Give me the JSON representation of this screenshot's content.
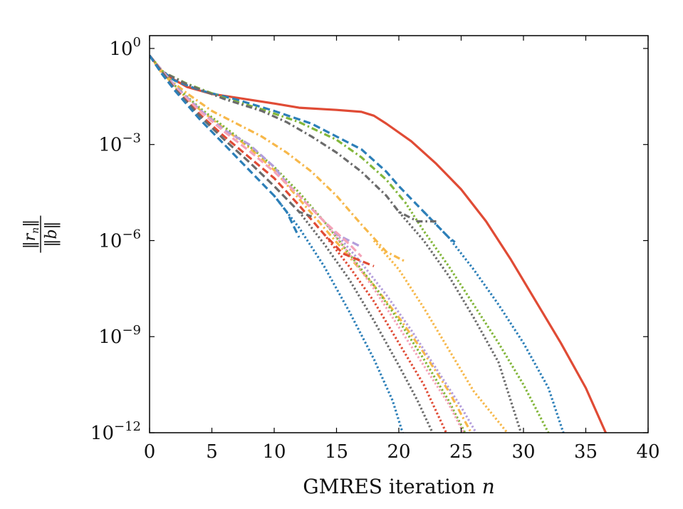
{
  "chart_data": {
    "type": "line",
    "title": "",
    "xlabel": "GMRES iteration",
    "xlabel_var": "n",
    "ylabel_num": "‖r",
    "ylabel_sub": "n",
    "ylabel_num_end": "‖",
    "ylabel_den": "‖b‖",
    "xlim": [
      0,
      40
    ],
    "ylim_log10": [
      -12,
      0.4
    ],
    "y_scale": "log",
    "grid": false,
    "legend": "none",
    "x_ticks": [
      0,
      5,
      10,
      15,
      20,
      25,
      30,
      35,
      40
    ],
    "x_tick_labels": [
      "0",
      "5",
      "10",
      "15",
      "20",
      "25",
      "30",
      "35",
      "40"
    ],
    "y_ticks_log10": [
      0,
      -3,
      -6,
      -9,
      -12
    ],
    "y_tick_base": "10",
    "y_tick_exps": [
      "0",
      "−3",
      "−6",
      "−9",
      "−12"
    ],
    "series": [
      {
        "color": "#e04b35",
        "style": "solid",
        "points": [
          [
            0,
            -0.22
          ],
          [
            1,
            -0.72
          ],
          [
            2,
            -0.98
          ],
          [
            3,
            -1.2
          ],
          [
            5,
            -1.42
          ],
          [
            8,
            -1.6
          ],
          [
            10,
            -1.72
          ],
          [
            12,
            -1.85
          ],
          [
            15,
            -1.92
          ],
          [
            17,
            -1.98
          ],
          [
            18,
            -2.1
          ],
          [
            19,
            -2.35
          ],
          [
            21,
            -2.9
          ],
          [
            23,
            -3.6
          ],
          [
            25,
            -4.4
          ],
          [
            27,
            -5.4
          ],
          [
            29,
            -6.6
          ],
          [
            31,
            -7.9
          ],
          [
            33,
            -9.2
          ],
          [
            35,
            -10.6
          ],
          [
            36.6,
            -12
          ]
        ]
      },
      {
        "color": "#2c7fb8",
        "style": "dashed",
        "points": [
          [
            0,
            -0.22
          ],
          [
            1,
            -0.7
          ],
          [
            2,
            -1.0
          ],
          [
            4,
            -1.3
          ],
          [
            7,
            -1.6
          ],
          [
            10,
            -1.95
          ],
          [
            13,
            -2.35
          ],
          [
            15,
            -2.75
          ],
          [
            17,
            -3.15
          ],
          [
            19,
            -3.85
          ],
          [
            20,
            -4.3
          ],
          [
            21,
            -4.7
          ],
          [
            22,
            -5.1
          ],
          [
            23,
            -5.5
          ],
          [
            24,
            -5.9
          ],
          [
            24.5,
            -6.05
          ]
        ]
      },
      {
        "color": "#2c7fb8",
        "style": "dotted",
        "points": [
          [
            22,
            -5.1
          ],
          [
            24,
            -5.9
          ],
          [
            26,
            -6.9
          ],
          [
            28,
            -8.0
          ],
          [
            30,
            -9.2
          ],
          [
            32,
            -10.6
          ],
          [
            33.2,
            -12
          ]
        ]
      },
      {
        "color": "#82b63a",
        "style": "dashdot",
        "points": [
          [
            0,
            -0.22
          ],
          [
            1,
            -0.72
          ],
          [
            3,
            -1.1
          ],
          [
            6,
            -1.55
          ],
          [
            9,
            -1.9
          ],
          [
            12,
            -2.3
          ],
          [
            15,
            -2.85
          ],
          [
            17,
            -3.4
          ],
          [
            19,
            -4.1
          ],
          [
            20.5,
            -4.8
          ]
        ]
      },
      {
        "color": "#82b63a",
        "style": "dotted",
        "points": [
          [
            20.5,
            -4.8
          ],
          [
            22,
            -5.7
          ],
          [
            24,
            -6.8
          ],
          [
            26,
            -8.0
          ],
          [
            28,
            -9.2
          ],
          [
            30,
            -10.5
          ],
          [
            32,
            -12
          ]
        ]
      },
      {
        "color": "#6b6b6b",
        "style": "dashdot",
        "points": [
          [
            0,
            -0.22
          ],
          [
            1,
            -0.72
          ],
          [
            3,
            -1.12
          ],
          [
            6,
            -1.58
          ],
          [
            9,
            -1.95
          ],
          [
            11,
            -2.3
          ],
          [
            13,
            -2.75
          ],
          [
            15,
            -3.25
          ],
          [
            17,
            -3.85
          ],
          [
            19,
            -4.6
          ],
          [
            20,
            -5.1
          ],
          [
            21.5,
            -5.4
          ],
          [
            23,
            -5.4
          ]
        ]
      },
      {
        "color": "#6b6b6b",
        "style": "dotted",
        "points": [
          [
            20,
            -5.1
          ],
          [
            22,
            -6.0
          ],
          [
            24,
            -7.1
          ],
          [
            26,
            -8.4
          ],
          [
            28,
            -9.8
          ],
          [
            29.8,
            -12
          ]
        ]
      },
      {
        "color": "#f7b84a",
        "style": "dashdot",
        "points": [
          [
            0,
            -0.22
          ],
          [
            1,
            -0.78
          ],
          [
            3,
            -1.4
          ],
          [
            5,
            -1.95
          ],
          [
            7,
            -2.35
          ],
          [
            9,
            -2.75
          ],
          [
            11,
            -3.25
          ],
          [
            13,
            -3.85
          ],
          [
            15,
            -4.6
          ],
          [
            17,
            -5.5
          ],
          [
            19,
            -6.35
          ],
          [
            20.5,
            -6.65
          ]
        ]
      },
      {
        "color": "#f7b84a",
        "style": "dotted",
        "points": [
          [
            18,
            -6.0
          ],
          [
            20,
            -6.9
          ],
          [
            22,
            -8.1
          ],
          [
            24,
            -9.4
          ],
          [
            26,
            -10.7
          ],
          [
            28.7,
            -12
          ]
        ]
      },
      {
        "color": "#f7b84a",
        "style": "dashdot",
        "points": [
          [
            0,
            -0.22
          ],
          [
            2,
            -1.2
          ],
          [
            4,
            -1.9
          ],
          [
            6,
            -2.5
          ],
          [
            8,
            -3.1
          ],
          [
            10,
            -3.8
          ],
          [
            12,
            -4.7
          ],
          [
            14,
            -5.6
          ],
          [
            16,
            -6.5
          ],
          [
            18,
            -7.4
          ],
          [
            20,
            -8.4
          ],
          [
            22,
            -9.5
          ],
          [
            24,
            -10.7
          ],
          [
            25.8,
            -12
          ]
        ]
      },
      {
        "color": "#82b63a",
        "style": "dotted",
        "points": [
          [
            0,
            -0.22
          ],
          [
            2,
            -1.15
          ],
          [
            4,
            -1.85
          ],
          [
            6,
            -2.45
          ],
          [
            8,
            -3.05
          ],
          [
            10,
            -3.7
          ],
          [
            12,
            -4.5
          ],
          [
            14,
            -5.4
          ],
          [
            16,
            -6.4
          ],
          [
            18,
            -7.4
          ],
          [
            20,
            -8.5
          ],
          [
            22,
            -9.7
          ],
          [
            24,
            -11.0
          ],
          [
            25.3,
            -12
          ]
        ]
      },
      {
        "color": "#b39ddb",
        "style": "dashed",
        "points": [
          [
            0,
            -0.22
          ],
          [
            2,
            -1.15
          ],
          [
            4,
            -1.9
          ],
          [
            6,
            -2.55
          ],
          [
            8,
            -3.0
          ],
          [
            10,
            -3.7
          ],
          [
            11,
            -4.2
          ],
          [
            13,
            -5.0
          ],
          [
            15,
            -5.8
          ],
          [
            17,
            -6.2
          ]
        ]
      },
      {
        "color": "#b39ddb",
        "style": "dotted",
        "points": [
          [
            15,
            -5.8
          ],
          [
            17,
            -6.7
          ],
          [
            19,
            -7.7
          ],
          [
            21,
            -8.8
          ],
          [
            23,
            -10.0
          ],
          [
            25,
            -11.2
          ],
          [
            26.2,
            -12
          ]
        ]
      },
      {
        "color": "#f4a3b8",
        "style": "dashed",
        "points": [
          [
            0,
            -0.22
          ],
          [
            2,
            -1.2
          ],
          [
            4,
            -1.95
          ],
          [
            6,
            -2.6
          ],
          [
            8,
            -3.2
          ],
          [
            10,
            -3.85
          ],
          [
            12,
            -4.6
          ],
          [
            14,
            -5.4
          ],
          [
            16,
            -6.1
          ],
          [
            17,
            -6.5
          ]
        ]
      },
      {
        "color": "#f4a3b8",
        "style": "dotted",
        "points": [
          [
            14,
            -5.4
          ],
          [
            16,
            -6.4
          ],
          [
            18,
            -7.5
          ],
          [
            20,
            -8.7
          ],
          [
            22,
            -9.9
          ],
          [
            24,
            -11.1
          ],
          [
            25.2,
            -12
          ]
        ]
      },
      {
        "color": "#e04b35",
        "style": "dashed",
        "points": [
          [
            0,
            -0.22
          ],
          [
            2,
            -1.25
          ],
          [
            4,
            -2.05
          ],
          [
            6,
            -2.75
          ],
          [
            8,
            -3.4
          ],
          [
            10,
            -4.05
          ],
          [
            12,
            -4.9
          ],
          [
            14,
            -5.8
          ],
          [
            15.5,
            -6.4
          ],
          [
            18,
            -6.8
          ]
        ]
      },
      {
        "color": "#e04b35",
        "style": "dotted",
        "points": [
          [
            14,
            -5.8
          ],
          [
            16,
            -6.8
          ],
          [
            18,
            -7.9
          ],
          [
            20,
            -9.2
          ],
          [
            22,
            -10.5
          ],
          [
            23.8,
            -12
          ]
        ]
      },
      {
        "color": "#6b6b6b",
        "style": "dashed",
        "points": [
          [
            0,
            -0.22
          ],
          [
            2,
            -1.25
          ],
          [
            4,
            -2.1
          ],
          [
            6,
            -2.85
          ],
          [
            8,
            -3.55
          ],
          [
            10,
            -4.3
          ],
          [
            12,
            -5.1
          ],
          [
            13,
            -5.25
          ]
        ]
      },
      {
        "color": "#6b6b6b",
        "style": "dotted",
        "points": [
          [
            12,
            -5.1
          ],
          [
            14,
            -6.1
          ],
          [
            16,
            -7.2
          ],
          [
            18,
            -8.5
          ],
          [
            20,
            -9.9
          ],
          [
            21.5,
            -11.0
          ],
          [
            22.7,
            -12
          ]
        ]
      },
      {
        "color": "#2c7fb8",
        "style": "dashed",
        "points": [
          [
            0,
            -0.22
          ],
          [
            1,
            -0.8
          ],
          [
            2,
            -1.3
          ],
          [
            4,
            -2.2
          ],
          [
            6,
            -3.0
          ],
          [
            8,
            -3.8
          ],
          [
            10,
            -4.6
          ],
          [
            11,
            -5.1
          ],
          [
            12,
            -5.9
          ]
        ]
      },
      {
        "color": "#2c7fb8",
        "style": "dotted",
        "points": [
          [
            10,
            -4.6
          ],
          [
            12,
            -5.6
          ],
          [
            14,
            -6.8
          ],
          [
            16,
            -8.2
          ],
          [
            18,
            -9.7
          ],
          [
            19.5,
            -11.0
          ],
          [
            20.3,
            -12
          ]
        ]
      }
    ]
  }
}
